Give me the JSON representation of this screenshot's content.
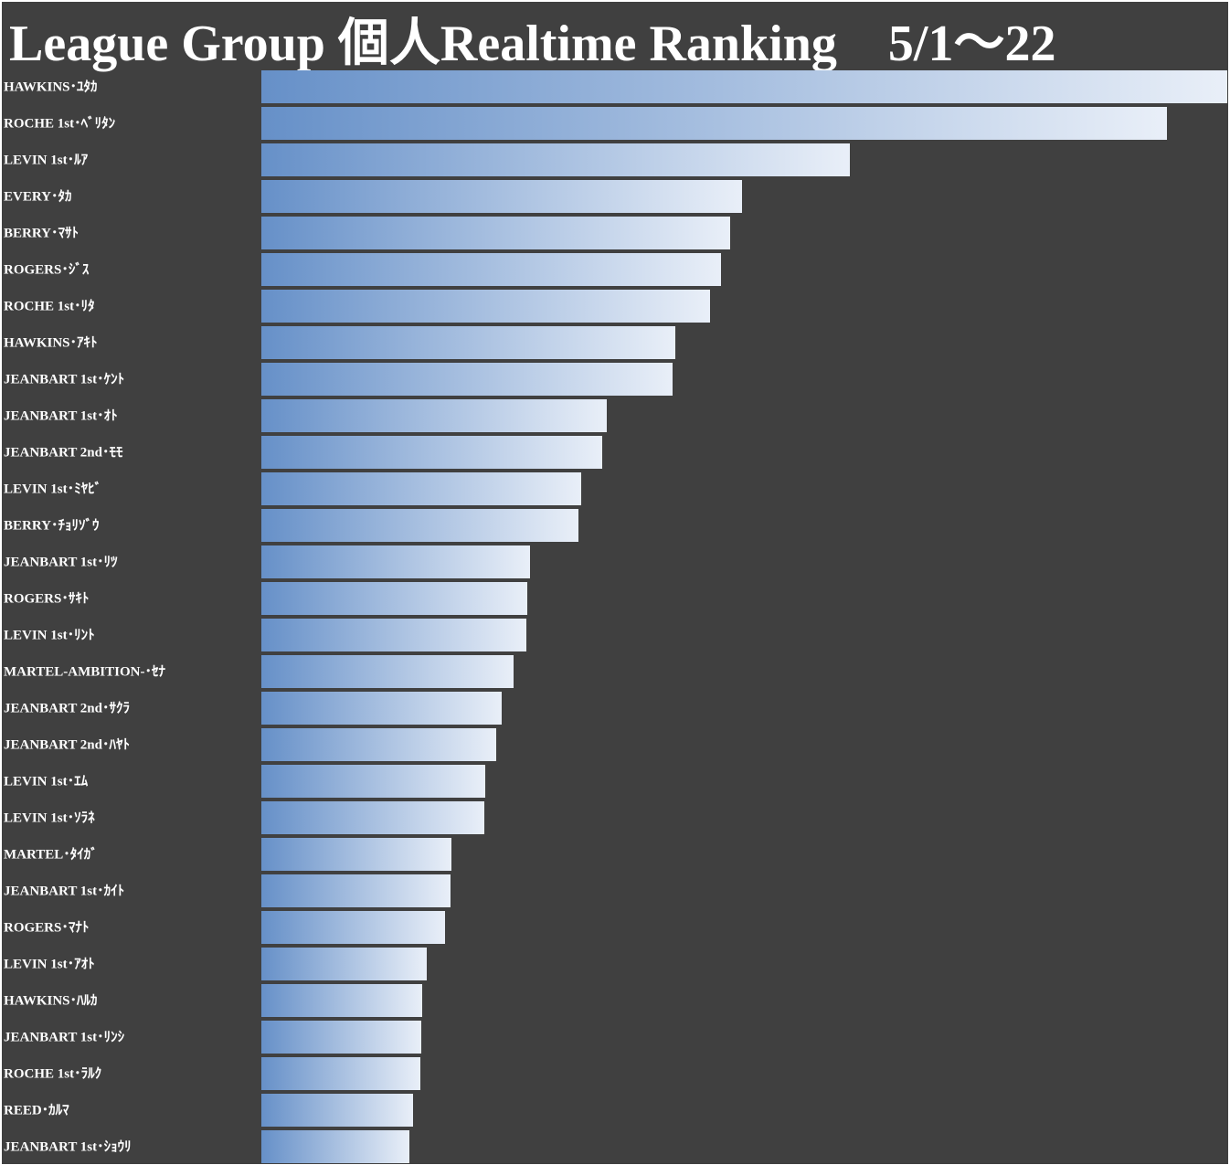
{
  "chart_data": {
    "type": "bar",
    "orientation": "horizontal",
    "title": "League Group 個人Realtime Ranking　5/1～22",
    "categories": [
      "HAWKINS･ﾕﾀｶ",
      "ROCHE 1st･ﾍﾞﾘﾀﾝ",
      "LEVIN 1st･ﾙｱ",
      "EVERY･ﾀｶ",
      "BERRY･ﾏｻﾄ",
      "ROGERS･ｼﾞｽ",
      "ROCHE 1st･ﾘﾀ",
      "HAWKINS･ｱｷﾄ",
      "JEANBART 1st･ｹﾝﾄ",
      "JEANBART 1st･ｵﾄ",
      "JEANBART 2nd･ﾓﾓ",
      "LEVIN 1st･ﾐﾔﾋﾞ",
      "BERRY･ﾁｮﾘｿﾞｳ",
      "JEANBART 1st･ﾘﾂ",
      "ROGERS･ｻｷﾄ",
      "LEVIN 1st･ﾘﾝﾄ",
      "MARTEL-AMBITION-･ｾﾅ",
      "JEANBART 2nd･ｻｸﾗ",
      "JEANBART 2nd･ﾊﾔﾄ",
      "LEVIN 1st･ｴﾑ",
      "LEVIN 1st･ｿﾗﾈ",
      "MARTEL･ﾀｲｶﾞ",
      "JEANBART 1st･ｶｲﾄ",
      "ROGERS･ﾏﾅﾄ",
      "LEVIN 1st･ｱｵﾄ",
      "HAWKINS･ﾊﾙｶ",
      "JEANBART 1st･ﾘﾝｼ",
      "ROCHE 1st･ﾗﾙｸ",
      "REED･ｶﾙﾏ",
      "JEANBART 1st･ｼｮｳﾘ"
    ],
    "values": [
      1057,
      991,
      644,
      526,
      513,
      503,
      491,
      453,
      450,
      378,
      373,
      350,
      347,
      294,
      291,
      290,
      276,
      263,
      257,
      245,
      244,
      208,
      207,
      201,
      181,
      176,
      175,
      174,
      166,
      162
    ],
    "xlim": [
      0,
      1060
    ],
    "colors": [
      "#6690c8",
      "#e9eff8"
    ],
    "background": "#404040"
  }
}
